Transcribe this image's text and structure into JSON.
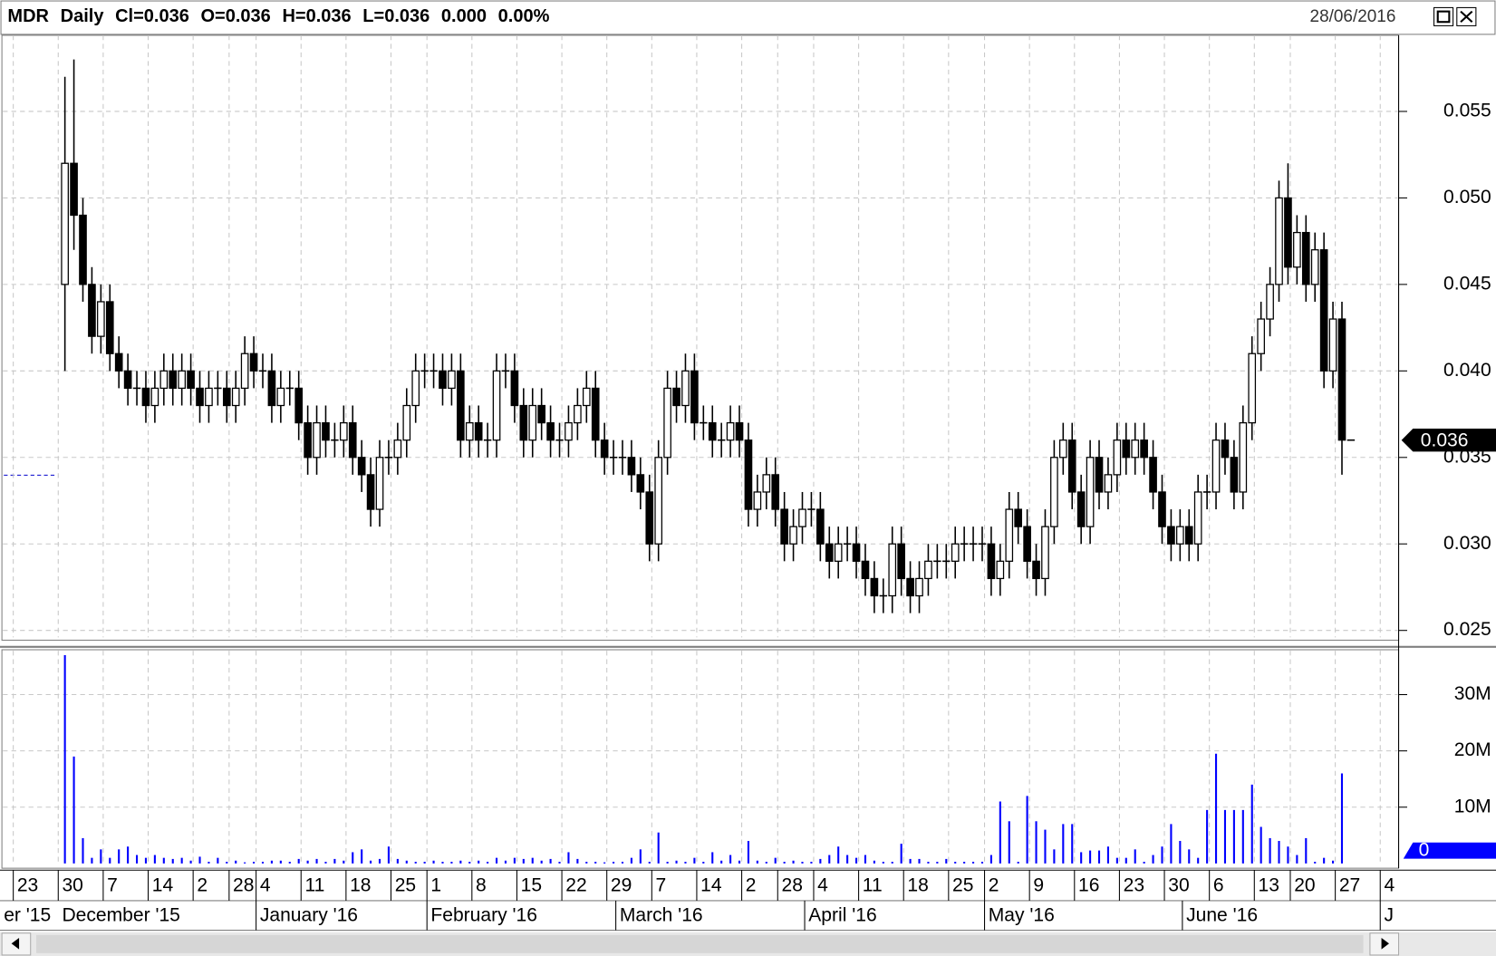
{
  "header": {
    "symbol": "MDR",
    "period": "Daily",
    "fields": [
      "Cl=0.036",
      "O=0.036",
      "H=0.036",
      "L=0.036",
      "0.000",
      "0.00%"
    ],
    "date": "28/06/2016"
  },
  "chart_data": [
    {
      "type": "candlestick",
      "color_up": "#ffffff",
      "color_down": "#000000",
      "ylim": [
        0.0246,
        0.0594
      ],
      "yticks": [
        0.025,
        {
          "value": 0.03,
          "label": "0.030"
        },
        0.035,
        {
          "value": 0.04,
          "label": "0.040"
        },
        0.045,
        {
          "value": 0.05,
          "label": "0.050"
        },
        0.055
      ],
      "grid": true,
      "last_price": 0.036,
      "open": [
        0.045,
        0.052,
        0.049,
        0.045,
        0.042,
        0.044,
        0.041,
        0.04,
        0.039,
        0.039,
        0.038,
        0.039,
        0.04,
        0.039,
        0.04,
        0.039,
        0.038,
        0.039,
        0.039,
        0.038,
        0.039,
        0.041,
        0.04,
        0.04,
        0.038,
        0.039,
        0.039,
        0.037,
        0.035,
        0.037,
        0.036,
        0.036,
        0.037,
        0.035,
        0.034,
        0.032,
        0.035,
        0.035,
        0.036,
        0.038,
        0.04,
        0.04,
        0.04,
        0.039,
        0.04,
        0.036,
        0.037,
        0.036,
        0.036,
        0.04,
        0.04,
        0.038,
        0.036,
        0.038,
        0.037,
        0.036,
        0.036,
        0.037,
        0.038,
        0.039,
        0.036,
        0.035,
        0.035,
        0.035,
        0.034,
        0.033,
        0.03,
        0.035,
        0.039,
        0.038,
        0.04,
        0.037,
        0.037,
        0.036,
        0.036,
        0.037,
        0.036,
        0.032,
        0.033,
        0.034,
        0.032,
        0.03,
        0.031,
        0.032,
        0.032,
        0.03,
        0.029,
        0.03,
        0.03,
        0.029,
        0.028,
        0.027,
        0.027,
        0.03,
        0.028,
        0.027,
        0.028,
        0.029,
        0.029,
        0.029,
        0.03,
        0.03,
        0.03,
        0.03,
        0.028,
        0.029,
        0.032,
        0.031,
        0.029,
        0.028,
        0.031,
        0.035,
        0.036,
        0.033,
        0.031,
        0.035,
        0.033,
        0.034,
        0.036,
        0.035,
        0.036,
        0.035,
        0.033,
        0.031,
        0.03,
        0.031,
        0.03,
        0.033,
        0.033,
        0.036,
        0.035,
        0.033,
        0.037,
        0.041,
        0.043,
        0.045,
        0.05,
        0.046,
        0.048,
        0.045,
        0.047,
        0.04,
        0.043,
        0.036
      ],
      "high": [
        0.057,
        0.058,
        0.05,
        0.046,
        0.045,
        0.045,
        0.042,
        0.041,
        0.04,
        0.04,
        0.04,
        0.041,
        0.041,
        0.041,
        0.041,
        0.04,
        0.04,
        0.04,
        0.04,
        0.04,
        0.042,
        0.042,
        0.041,
        0.041,
        0.04,
        0.04,
        0.04,
        0.038,
        0.038,
        0.038,
        0.037,
        0.038,
        0.038,
        0.036,
        0.035,
        0.036,
        0.036,
        0.037,
        0.039,
        0.041,
        0.041,
        0.041,
        0.041,
        0.041,
        0.041,
        0.038,
        0.038,
        0.037,
        0.041,
        0.041,
        0.041,
        0.039,
        0.039,
        0.039,
        0.038,
        0.037,
        0.038,
        0.039,
        0.04,
        0.04,
        0.037,
        0.036,
        0.036,
        0.036,
        0.035,
        0.034,
        0.036,
        0.04,
        0.04,
        0.041,
        0.041,
        0.038,
        0.038,
        0.037,
        0.038,
        0.038,
        0.037,
        0.034,
        0.035,
        0.035,
        0.033,
        0.032,
        0.033,
        0.033,
        0.033,
        0.031,
        0.031,
        0.031,
        0.031,
        0.03,
        0.029,
        0.028,
        0.031,
        0.031,
        0.029,
        0.029,
        0.03,
        0.03,
        0.03,
        0.031,
        0.031,
        0.031,
        0.031,
        0.031,
        0.03,
        0.033,
        0.033,
        0.032,
        0.03,
        0.032,
        0.036,
        0.037,
        0.037,
        0.034,
        0.036,
        0.036,
        0.035,
        0.037,
        0.037,
        0.037,
        0.037,
        0.036,
        0.034,
        0.032,
        0.032,
        0.032,
        0.034,
        0.034,
        0.037,
        0.037,
        0.036,
        0.038,
        0.042,
        0.044,
        0.046,
        0.051,
        0.052,
        0.049,
        0.049,
        0.048,
        0.048,
        0.044,
        0.044,
        0.036
      ],
      "low": [
        0.04,
        0.047,
        0.044,
        0.041,
        0.041,
        0.04,
        0.039,
        0.038,
        0.038,
        0.037,
        0.037,
        0.038,
        0.038,
        0.038,
        0.038,
        0.037,
        0.037,
        0.038,
        0.037,
        0.037,
        0.038,
        0.039,
        0.039,
        0.037,
        0.037,
        0.038,
        0.036,
        0.034,
        0.034,
        0.035,
        0.035,
        0.035,
        0.034,
        0.033,
        0.031,
        0.031,
        0.034,
        0.034,
        0.035,
        0.037,
        0.039,
        0.039,
        0.038,
        0.038,
        0.035,
        0.035,
        0.035,
        0.035,
        0.035,
        0.039,
        0.037,
        0.035,
        0.035,
        0.036,
        0.035,
        0.035,
        0.035,
        0.036,
        0.037,
        0.035,
        0.034,
        0.034,
        0.034,
        0.033,
        0.032,
        0.029,
        0.029,
        0.034,
        0.037,
        0.037,
        0.036,
        0.036,
        0.035,
        0.035,
        0.035,
        0.035,
        0.031,
        0.031,
        0.032,
        0.031,
        0.029,
        0.029,
        0.03,
        0.031,
        0.029,
        0.028,
        0.028,
        0.029,
        0.028,
        0.027,
        0.026,
        0.026,
        0.026,
        0.027,
        0.026,
        0.026,
        0.027,
        0.028,
        0.028,
        0.028,
        0.029,
        0.029,
        0.029,
        0.027,
        0.027,
        0.028,
        0.03,
        0.028,
        0.027,
        0.027,
        0.03,
        0.034,
        0.032,
        0.03,
        0.03,
        0.032,
        0.032,
        0.033,
        0.034,
        0.034,
        0.034,
        0.032,
        0.03,
        0.029,
        0.029,
        0.029,
        0.029,
        0.032,
        0.032,
        0.034,
        0.032,
        0.032,
        0.036,
        0.04,
        0.042,
        0.044,
        0.045,
        0.045,
        0.044,
        0.044,
        0.039,
        0.039,
        0.034,
        0.036
      ],
      "close": [
        0.052,
        0.049,
        0.045,
        0.042,
        0.044,
        0.041,
        0.04,
        0.039,
        0.039,
        0.038,
        0.039,
        0.04,
        0.039,
        0.04,
        0.039,
        0.038,
        0.039,
        0.039,
        0.038,
        0.039,
        0.041,
        0.04,
        0.04,
        0.038,
        0.039,
        0.039,
        0.037,
        0.035,
        0.037,
        0.036,
        0.036,
        0.037,
        0.035,
        0.034,
        0.032,
        0.035,
        0.035,
        0.036,
        0.038,
        0.04,
        0.04,
        0.04,
        0.039,
        0.04,
        0.036,
        0.037,
        0.036,
        0.036,
        0.04,
        0.04,
        0.038,
        0.036,
        0.038,
        0.037,
        0.036,
        0.036,
        0.037,
        0.038,
        0.039,
        0.036,
        0.035,
        0.035,
        0.035,
        0.034,
        0.033,
        0.03,
        0.035,
        0.039,
        0.038,
        0.04,
        0.037,
        0.037,
        0.036,
        0.036,
        0.037,
        0.036,
        0.032,
        0.033,
        0.034,
        0.032,
        0.03,
        0.031,
        0.032,
        0.032,
        0.03,
        0.029,
        0.03,
        0.03,
        0.029,
        0.028,
        0.027,
        0.027,
        0.03,
        0.028,
        0.027,
        0.028,
        0.029,
        0.029,
        0.029,
        0.03,
        0.03,
        0.03,
        0.03,
        0.028,
        0.029,
        0.032,
        0.031,
        0.029,
        0.028,
        0.031,
        0.035,
        0.036,
        0.033,
        0.031,
        0.035,
        0.033,
        0.034,
        0.036,
        0.035,
        0.036,
        0.035,
        0.033,
        0.031,
        0.03,
        0.031,
        0.03,
        0.033,
        0.033,
        0.036,
        0.035,
        0.033,
        0.037,
        0.041,
        0.043,
        0.045,
        0.05,
        0.046,
        0.048,
        0.045,
        0.047,
        0.04,
        0.043,
        0.036,
        0.036
      ]
    },
    {
      "type": "bar",
      "color": "#0000ff",
      "ylim": [
        0,
        37.8
      ],
      "yticks": [
        {
          "value": 10,
          "label": "10M"
        },
        {
          "value": 20,
          "label": "20M"
        },
        {
          "value": 30,
          "label": "30M"
        }
      ],
      "grid": true,
      "last_value": 0,
      "values": [
        37,
        19,
        4.5,
        1,
        2.5,
        1,
        2.5,
        3,
        1.5,
        1,
        1.5,
        1,
        0.8,
        1,
        0.5,
        1.2,
        0.3,
        1,
        0.3,
        0.5,
        0.2,
        0.3,
        0.3,
        0.5,
        0.5,
        0.3,
        0.8,
        0.5,
        0.8,
        0.3,
        0.8,
        0.5,
        2,
        2.5,
        0.5,
        0.8,
        3,
        0.8,
        0.5,
        0.3,
        0.3,
        0.5,
        0.3,
        0.3,
        0.5,
        0.3,
        0.5,
        0.3,
        1,
        0.5,
        1,
        0.8,
        1,
        0.5,
        0.8,
        0.3,
        2,
        0.8,
        0.3,
        0.3,
        0.2,
        0.3,
        0.3,
        1,
        2.5,
        0.3,
        5.5,
        0.3,
        0.5,
        0.3,
        1,
        0.3,
        2,
        0.5,
        1.5,
        0.5,
        4,
        0.5,
        0.3,
        1,
        0.3,
        0.5,
        0.3,
        0.3,
        0.8,
        1.5,
        3,
        1.5,
        1,
        1.5,
        0.5,
        0.3,
        0.3,
        3.5,
        0.8,
        0.8,
        0.3,
        0.3,
        0.8,
        0.3,
        0.3,
        0.3,
        0.3,
        1.5,
        11,
        7.5,
        0.3,
        12,
        7.5,
        6,
        2.5,
        7,
        7,
        2,
        2.3,
        2.3,
        3,
        1,
        1,
        2.5,
        0.3,
        1.5,
        3,
        7,
        4,
        2.5,
        1,
        9.5,
        19.5,
        9.5,
        9.5,
        9.5,
        14,
        6.5,
        4.5,
        4,
        3,
        1.5,
        4.5,
        0.3,
        1,
        0.5,
        16,
        0
      ],
      "xticks": [
        {
          "value": -5,
          "label": "23"
        },
        {
          "value": 0,
          "label": "30"
        },
        {
          "value": 5,
          "label": "7"
        },
        {
          "value": 10,
          "label": "14"
        },
        {
          "value": 15,
          "label": "2"
        },
        {
          "value": 19,
          "label": "28"
        },
        {
          "value": 22,
          "label": "4"
        },
        {
          "value": 27,
          "label": "11"
        },
        {
          "value": 32,
          "label": "18"
        },
        {
          "value": 37,
          "label": "25"
        },
        {
          "value": 41,
          "label": "1"
        },
        {
          "value": 46,
          "label": "8"
        },
        {
          "value": 51,
          "label": "15"
        },
        {
          "value": 56,
          "label": "22"
        },
        {
          "value": 61,
          "label": "29"
        },
        {
          "value": 66,
          "label": "7"
        },
        {
          "value": 71,
          "label": "14"
        },
        {
          "value": 76,
          "label": "2"
        },
        {
          "value": 80,
          "label": "28"
        },
        {
          "value": 84,
          "label": "4"
        },
        {
          "value": 89,
          "label": "11"
        },
        {
          "value": 94,
          "label": "18"
        },
        {
          "value": 99,
          "label": "25"
        },
        {
          "value": 103,
          "label": "2"
        },
        {
          "value": 108,
          "label": "9"
        },
        {
          "value": 113,
          "label": "16"
        },
        {
          "value": 118,
          "label": "23"
        },
        {
          "value": 123,
          "label": "30"
        },
        {
          "value": 128,
          "label": "6"
        },
        {
          "value": 133,
          "label": "13"
        },
        {
          "value": 137,
          "label": "20"
        },
        {
          "value": 142,
          "label": "27"
        },
        {
          "value": 147,
          "label": "4"
        }
      ],
      "month_labels": [
        {
          "value": -6.6,
          "label": "er '15"
        },
        {
          "value": 0,
          "label": "December '15"
        },
        {
          "value": 22,
          "label": "January '16"
        },
        {
          "value": 41,
          "label": "February '16"
        },
        {
          "value": 62,
          "label": "March '16"
        },
        {
          "value": 83,
          "label": "April '16"
        },
        {
          "value": 103,
          "label": "May '16"
        },
        {
          "value": 125,
          "label": "June '16"
        },
        {
          "value": 147,
          "label": "J"
        }
      ]
    }
  ]
}
